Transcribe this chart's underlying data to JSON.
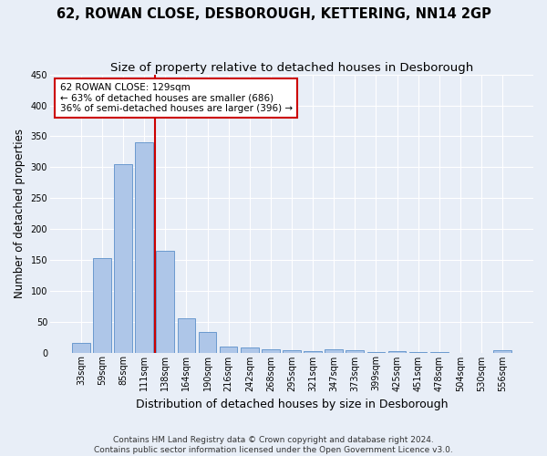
{
  "title": "62, ROWAN CLOSE, DESBOROUGH, KETTERING, NN14 2GP",
  "subtitle": "Size of property relative to detached houses in Desborough",
  "xlabel": "Distribution of detached houses by size in Desborough",
  "ylabel": "Number of detached properties",
  "categories": [
    "33sqm",
    "59sqm",
    "85sqm",
    "111sqm",
    "138sqm",
    "164sqm",
    "190sqm",
    "216sqm",
    "242sqm",
    "268sqm",
    "295sqm",
    "321sqm",
    "347sqm",
    "373sqm",
    "399sqm",
    "425sqm",
    "451sqm",
    "478sqm",
    "504sqm",
    "530sqm",
    "556sqm"
  ],
  "values": [
    15,
    153,
    305,
    340,
    165,
    56,
    33,
    10,
    8,
    5,
    3,
    2,
    5,
    3,
    1,
    2,
    1,
    1,
    0,
    0,
    4
  ],
  "bar_color": "#aec6e8",
  "bar_edge_color": "#5b8fc9",
  "bg_color": "#e8eef7",
  "grid_color": "#ffffff",
  "property_line_color": "#cc0000",
  "annotation_text": "62 ROWAN CLOSE: 129sqm\n← 63% of detached houses are smaller (686)\n36% of semi-detached houses are larger (396) →",
  "annotation_box_color": "#ffffff",
  "annotation_box_edge": "#cc0000",
  "footer": "Contains HM Land Registry data © Crown copyright and database right 2024.\nContains public sector information licensed under the Open Government Licence v3.0.",
  "ylim": [
    0,
    450
  ],
  "title_fontsize": 10.5,
  "subtitle_fontsize": 9.5,
  "xlabel_fontsize": 9,
  "ylabel_fontsize": 8.5,
  "tick_fontsize": 7,
  "footer_fontsize": 6.5,
  "annotation_fontsize": 7.5
}
